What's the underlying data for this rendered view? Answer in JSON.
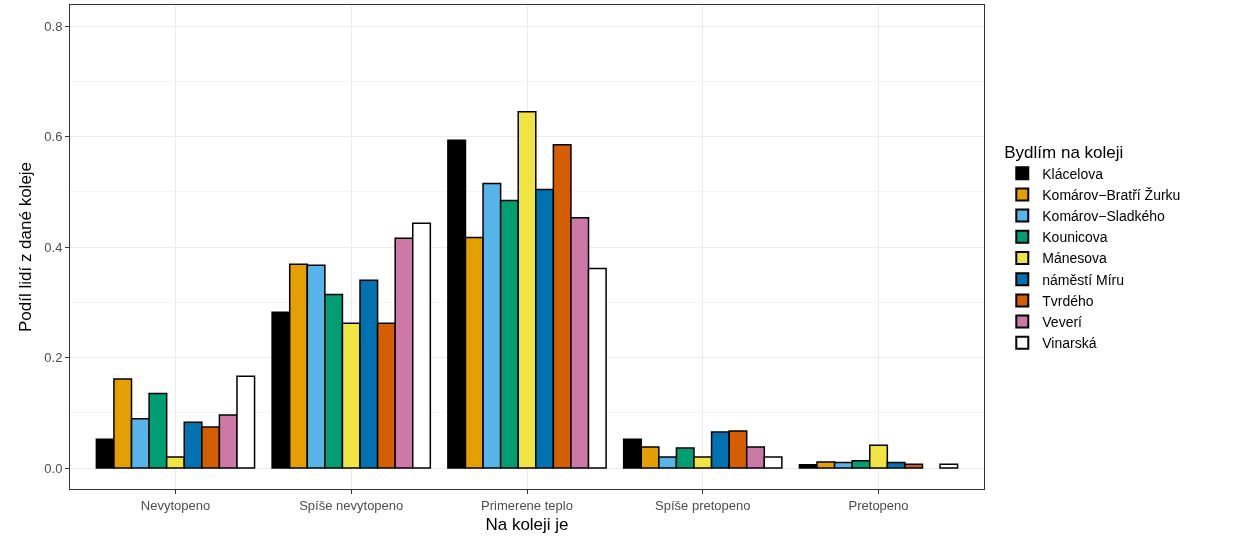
{
  "chart_data": {
    "type": "bar",
    "xlabel": "Na koleji je",
    "ylabel": "Podíl lidí z dané koleje",
    "legend_title": "Bydlím na koleji",
    "categories": [
      "Nevytopeno",
      "Spíše nevytopeno",
      "Primerene teplo",
      "Spíše pretopeno",
      "Pretopeno"
    ],
    "series": [
      {
        "name": "Klácelova",
        "color": "#000000",
        "values": [
          0.052,
          0.282,
          0.593,
          0.052,
          0.006
        ]
      },
      {
        "name": "Komárov−Bratří Žurku",
        "color": "#e69f00",
        "values": [
          0.161,
          0.369,
          0.417,
          0.038,
          0.011
        ]
      },
      {
        "name": "Komárov−Sladkého",
        "color": "#56b4e9",
        "values": [
          0.089,
          0.367,
          0.515,
          0.02,
          0.01
        ]
      },
      {
        "name": "Kounicova",
        "color": "#009e73",
        "values": [
          0.135,
          0.314,
          0.484,
          0.036,
          0.013
        ]
      },
      {
        "name": "Mánesova",
        "color": "#f0e442",
        "values": [
          0.02,
          0.262,
          0.645,
          0.02,
          0.041
        ]
      },
      {
        "name": "náměstí Míru",
        "color": "#0072b2",
        "values": [
          0.083,
          0.34,
          0.504,
          0.065,
          0.01
        ]
      },
      {
        "name": "Tvrdého",
        "color": "#d55e00",
        "values": [
          0.074,
          0.262,
          0.585,
          0.067,
          0.007
        ]
      },
      {
        "name": "Veverí",
        "color": "#cc79a7",
        "values": [
          0.096,
          0.416,
          0.453,
          0.038,
          null
        ]
      },
      {
        "name": "Vinarská",
        "color": "#ffffff",
        "values": [
          0.166,
          0.443,
          0.361,
          0.02,
          0.007
        ]
      }
    ],
    "ylim": [
      -0.038,
      0.838
    ],
    "yticks": [
      {
        "value": 0,
        "label": "0.0"
      },
      0.2,
      0.4,
      0.6,
      0.8
    ],
    "grid": true,
    "legend": "right"
  }
}
